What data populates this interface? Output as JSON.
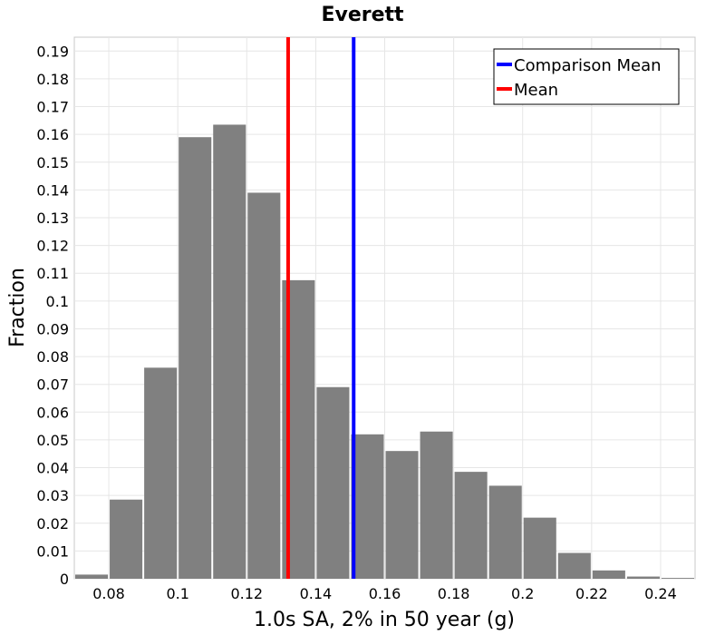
{
  "chart_data": {
    "type": "bar",
    "title": "Everett",
    "xlabel": "1.0s SA, 2% in 50 year (g)",
    "ylabel": "Fraction",
    "xlim": [
      0.07,
      0.25
    ],
    "ylim": [
      0,
      0.195
    ],
    "grid": true,
    "legend_position": "top-right",
    "bin_width": 0.01,
    "bins": [
      {
        "x": 0.075,
        "value": 0.0015
      },
      {
        "x": 0.085,
        "value": 0.0285
      },
      {
        "x": 0.095,
        "value": 0.076
      },
      {
        "x": 0.105,
        "value": 0.159
      },
      {
        "x": 0.115,
        "value": 0.1635
      },
      {
        "x": 0.125,
        "value": 0.139
      },
      {
        "x": 0.135,
        "value": 0.1075
      },
      {
        "x": 0.145,
        "value": 0.069
      },
      {
        "x": 0.155,
        "value": 0.052
      },
      {
        "x": 0.165,
        "value": 0.046
      },
      {
        "x": 0.175,
        "value": 0.053
      },
      {
        "x": 0.185,
        "value": 0.0385
      },
      {
        "x": 0.195,
        "value": 0.0335
      },
      {
        "x": 0.205,
        "value": 0.022
      },
      {
        "x": 0.215,
        "value": 0.0093
      },
      {
        "x": 0.225,
        "value": 0.003
      },
      {
        "x": 0.235,
        "value": 0.0008
      },
      {
        "x": 0.245,
        "value": 0.0003
      }
    ],
    "bar_color": "#808080",
    "x_ticks": [
      {
        "value": 0.08,
        "label": "0.08"
      },
      {
        "value": 0.1,
        "label": "0.1"
      },
      {
        "value": 0.12,
        "label": "0.12"
      },
      {
        "value": 0.14,
        "label": "0.14"
      },
      {
        "value": 0.16,
        "label": "0.16"
      },
      {
        "value": 0.18,
        "label": "0.18"
      },
      {
        "value": 0.2,
        "label": "0.2"
      },
      {
        "value": 0.22,
        "label": "0.22"
      },
      {
        "value": 0.24,
        "label": "0.24"
      }
    ],
    "y_ticks": [
      {
        "value": 0,
        "label": "0"
      },
      {
        "value": 0.01,
        "label": "0.01"
      },
      {
        "value": 0.02,
        "label": "0.02"
      },
      {
        "value": 0.03,
        "label": "0.03"
      },
      {
        "value": 0.04,
        "label": "0.04"
      },
      {
        "value": 0.05,
        "label": "0.05"
      },
      {
        "value": 0.06,
        "label": "0.06"
      },
      {
        "value": 0.07,
        "label": "0.07"
      },
      {
        "value": 0.08,
        "label": "0.08"
      },
      {
        "value": 0.09,
        "label": "0.09"
      },
      {
        "value": 0.1,
        "label": "0.1"
      },
      {
        "value": 0.11,
        "label": "0.11"
      },
      {
        "value": 0.12,
        "label": "0.12"
      },
      {
        "value": 0.13,
        "label": "0.13"
      },
      {
        "value": 0.14,
        "label": "0.14"
      },
      {
        "value": 0.15,
        "label": "0.15"
      },
      {
        "value": 0.16,
        "label": "0.16"
      },
      {
        "value": 0.17,
        "label": "0.17"
      },
      {
        "value": 0.18,
        "label": "0.18"
      },
      {
        "value": 0.19,
        "label": "0.19"
      }
    ],
    "reference_lines": [
      {
        "name": "Comparison Mean",
        "x": 0.151,
        "color": "#0000ff"
      },
      {
        "name": "Mean",
        "x": 0.132,
        "color": "#ff0000"
      }
    ]
  }
}
